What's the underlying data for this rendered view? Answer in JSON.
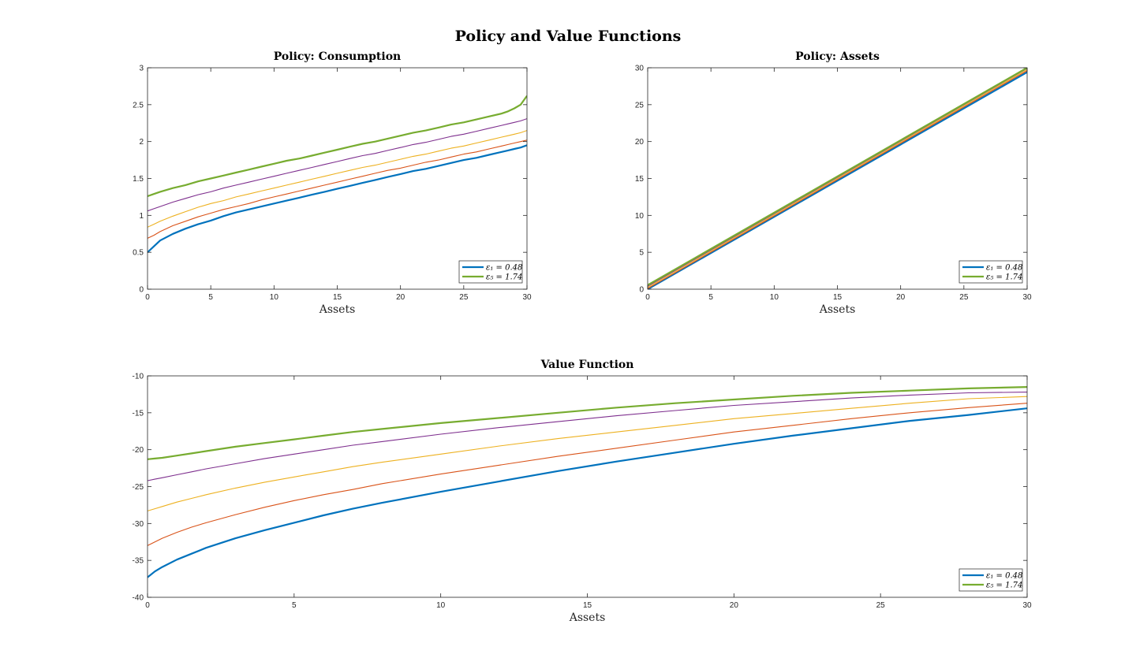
{
  "figure": {
    "title": "Policy and Value Functions"
  },
  "colors": {
    "s1": "#0072BD",
    "s2": "#D95319",
    "s3": "#EDB120",
    "s4": "#7E2F8E",
    "s5": "#77AC30"
  },
  "chart_data": [
    {
      "type": "line",
      "title": "Policy: Consumption",
      "xlabel": "Assets",
      "ylabel": "",
      "xlim": [
        0,
        30
      ],
      "ylim": [
        0,
        3
      ],
      "xticks": [
        0,
        5,
        10,
        15,
        20,
        25,
        30
      ],
      "yticks": [
        0,
        0.5,
        1,
        1.5,
        2,
        2.5,
        3
      ],
      "grid": false,
      "legend_position": "bottom-right",
      "legend": [
        "ε₁ = 0.48",
        "ε₅ = 1.74"
      ],
      "x": [
        0,
        0.5,
        1,
        2,
        3,
        4,
        5,
        6,
        7,
        8,
        9,
        10,
        11,
        12,
        13,
        14,
        15,
        16,
        17,
        18,
        19,
        20,
        21,
        22,
        23,
        24,
        25,
        26,
        27,
        28,
        28.5,
        29,
        29.5,
        30
      ],
      "series": [
        {
          "name": "ε₁ = 0.48",
          "width": 2.2,
          "values": [
            0.5,
            0.58,
            0.66,
            0.75,
            0.82,
            0.88,
            0.93,
            0.99,
            1.04,
            1.08,
            1.12,
            1.16,
            1.2,
            1.24,
            1.28,
            1.32,
            1.36,
            1.4,
            1.44,
            1.48,
            1.52,
            1.56,
            1.6,
            1.63,
            1.67,
            1.71,
            1.75,
            1.78,
            1.82,
            1.86,
            1.88,
            1.9,
            1.92,
            1.95
          ]
        },
        {
          "name": "",
          "width": 1.1,
          "values": [
            0.69,
            0.73,
            0.78,
            0.86,
            0.92,
            0.98,
            1.03,
            1.08,
            1.12,
            1.16,
            1.21,
            1.25,
            1.29,
            1.33,
            1.37,
            1.41,
            1.45,
            1.49,
            1.53,
            1.57,
            1.61,
            1.64,
            1.68,
            1.72,
            1.75,
            1.79,
            1.83,
            1.86,
            1.9,
            1.94,
            1.96,
            1.98,
            2.0,
            2.02
          ]
        },
        {
          "name": "",
          "width": 1.1,
          "values": [
            0.84,
            0.88,
            0.92,
            0.99,
            1.05,
            1.11,
            1.16,
            1.2,
            1.25,
            1.29,
            1.33,
            1.37,
            1.41,
            1.45,
            1.49,
            1.53,
            1.57,
            1.61,
            1.65,
            1.68,
            1.72,
            1.76,
            1.8,
            1.83,
            1.87,
            1.91,
            1.94,
            1.98,
            2.02,
            2.06,
            2.08,
            2.1,
            2.12,
            2.15
          ]
        },
        {
          "name": "",
          "width": 1.1,
          "values": [
            1.06,
            1.09,
            1.12,
            1.18,
            1.23,
            1.28,
            1.32,
            1.37,
            1.41,
            1.45,
            1.49,
            1.53,
            1.57,
            1.61,
            1.65,
            1.69,
            1.73,
            1.77,
            1.81,
            1.84,
            1.88,
            1.92,
            1.96,
            1.99,
            2.03,
            2.07,
            2.1,
            2.14,
            2.18,
            2.22,
            2.24,
            2.26,
            2.28,
            2.31
          ]
        },
        {
          "name": "ε₅ = 1.74",
          "width": 2.2,
          "values": [
            1.26,
            1.29,
            1.32,
            1.37,
            1.41,
            1.46,
            1.5,
            1.54,
            1.58,
            1.62,
            1.66,
            1.7,
            1.74,
            1.77,
            1.81,
            1.85,
            1.89,
            1.93,
            1.97,
            2.0,
            2.04,
            2.08,
            2.12,
            2.15,
            2.19,
            2.23,
            2.26,
            2.3,
            2.34,
            2.38,
            2.41,
            2.45,
            2.5,
            2.62
          ]
        }
      ]
    },
    {
      "type": "line",
      "title": "Policy: Assets",
      "xlabel": "Assets",
      "ylabel": "",
      "xlim": [
        0,
        30
      ],
      "ylim": [
        0,
        30
      ],
      "xticks": [
        0,
        5,
        10,
        15,
        20,
        25,
        30
      ],
      "yticks": [
        0,
        5,
        10,
        15,
        20,
        25,
        30
      ],
      "grid": false,
      "legend_position": "bottom-right",
      "legend": [
        "ε₁ = 0.48",
        "ε₅ = 1.74"
      ],
      "x": [
        0,
        30
      ],
      "series": [
        {
          "name": "ε₁ = 0.48",
          "width": 2.2,
          "values": [
            0.0,
            29.4
          ]
        },
        {
          "name": "",
          "width": 1.1,
          "values": [
            0.1,
            29.6
          ]
        },
        {
          "name": "",
          "width": 1.1,
          "values": [
            0.25,
            29.75
          ]
        },
        {
          "name": "",
          "width": 1.1,
          "values": [
            0.4,
            29.9
          ]
        },
        {
          "name": "ε₅ = 1.74",
          "width": 2.2,
          "values": [
            0.55,
            30.0
          ]
        }
      ]
    },
    {
      "type": "line",
      "title": "Value Function",
      "xlabel": "Assets",
      "ylabel": "",
      "xlim": [
        0,
        30
      ],
      "ylim": [
        -40,
        -10
      ],
      "xticks": [
        0,
        5,
        10,
        15,
        20,
        25,
        30
      ],
      "yticks": [
        -40,
        -35,
        -30,
        -25,
        -20,
        -15,
        -10
      ],
      "grid": false,
      "legend_position": "bottom-right",
      "legend": [
        "ε₁ = 0.48",
        "ε₅ = 1.74"
      ],
      "x": [
        0,
        0.25,
        0.5,
        1,
        1.5,
        2,
        3,
        4,
        5,
        6,
        7,
        8,
        10,
        12,
        14,
        16,
        18,
        20,
        22,
        24,
        26,
        28,
        30
      ],
      "series": [
        {
          "name": "ε₁ = 0.48",
          "width": 2.2,
          "values": [
            -37.3,
            -36.5,
            -35.9,
            -34.9,
            -34.1,
            -33.3,
            -32.0,
            -30.9,
            -29.9,
            -28.9,
            -28.0,
            -27.2,
            -25.7,
            -24.3,
            -22.9,
            -21.6,
            -20.4,
            -19.2,
            -18.1,
            -17.1,
            -16.1,
            -15.3,
            -14.4
          ]
        },
        {
          "name": "",
          "width": 1.1,
          "values": [
            -33.0,
            -32.5,
            -32.0,
            -31.2,
            -30.5,
            -29.9,
            -28.8,
            -27.8,
            -26.9,
            -26.1,
            -25.4,
            -24.6,
            -23.3,
            -22.1,
            -20.9,
            -19.8,
            -18.7,
            -17.6,
            -16.7,
            -15.8,
            -15.0,
            -14.3,
            -13.7
          ]
        },
        {
          "name": "",
          "width": 1.1,
          "values": [
            -28.3,
            -28.0,
            -27.7,
            -27.1,
            -26.6,
            -26.1,
            -25.2,
            -24.4,
            -23.7,
            -23.0,
            -22.3,
            -21.7,
            -20.6,
            -19.5,
            -18.5,
            -17.6,
            -16.7,
            -15.8,
            -15.1,
            -14.4,
            -13.7,
            -13.1,
            -12.8
          ]
        },
        {
          "name": "",
          "width": 1.1,
          "values": [
            -24.2,
            -24.0,
            -23.8,
            -23.4,
            -23.0,
            -22.6,
            -21.9,
            -21.2,
            -20.6,
            -20.0,
            -19.4,
            -18.9,
            -17.9,
            -17.0,
            -16.2,
            -15.4,
            -14.7,
            -14.0,
            -13.5,
            -13.0,
            -12.6,
            -12.3,
            -12.2
          ]
        },
        {
          "name": "ε₅ = 1.74",
          "width": 2.2,
          "values": [
            -21.3,
            -21.2,
            -21.1,
            -20.8,
            -20.5,
            -20.2,
            -19.6,
            -19.1,
            -18.6,
            -18.1,
            -17.6,
            -17.2,
            -16.4,
            -15.7,
            -15.0,
            -14.3,
            -13.7,
            -13.2,
            -12.7,
            -12.3,
            -12.0,
            -11.7,
            -11.5
          ]
        }
      ]
    }
  ]
}
